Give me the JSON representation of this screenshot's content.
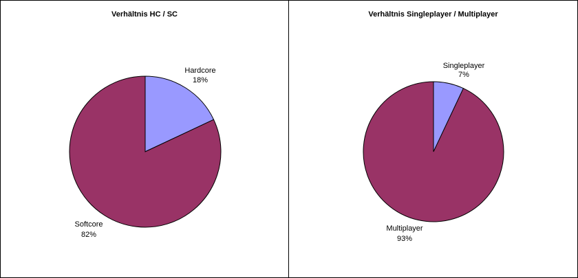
{
  "chart_data": [
    {
      "type": "pie",
      "title": "Verhältnis HC / SC",
      "slices": [
        {
          "label": "Hardcore",
          "percent_label": "18%",
          "value": 18,
          "color": "#9999ff"
        },
        {
          "label": "Softcore",
          "percent_label": "82%",
          "value": 82,
          "color": "#993366"
        }
      ],
      "legend": "none",
      "data_labels": "category and percentage"
    },
    {
      "type": "pie",
      "title": "Verhältnis Singleplayer / Multiplayer",
      "slices": [
        {
          "label": "Singleplayer",
          "percent_label": "7%",
          "value": 7,
          "color": "#9999ff"
        },
        {
          "label": "Multiplayer",
          "percent_label": "93%",
          "value": 93,
          "color": "#993366"
        }
      ],
      "legend": "none",
      "data_labels": "category and percentage"
    }
  ]
}
